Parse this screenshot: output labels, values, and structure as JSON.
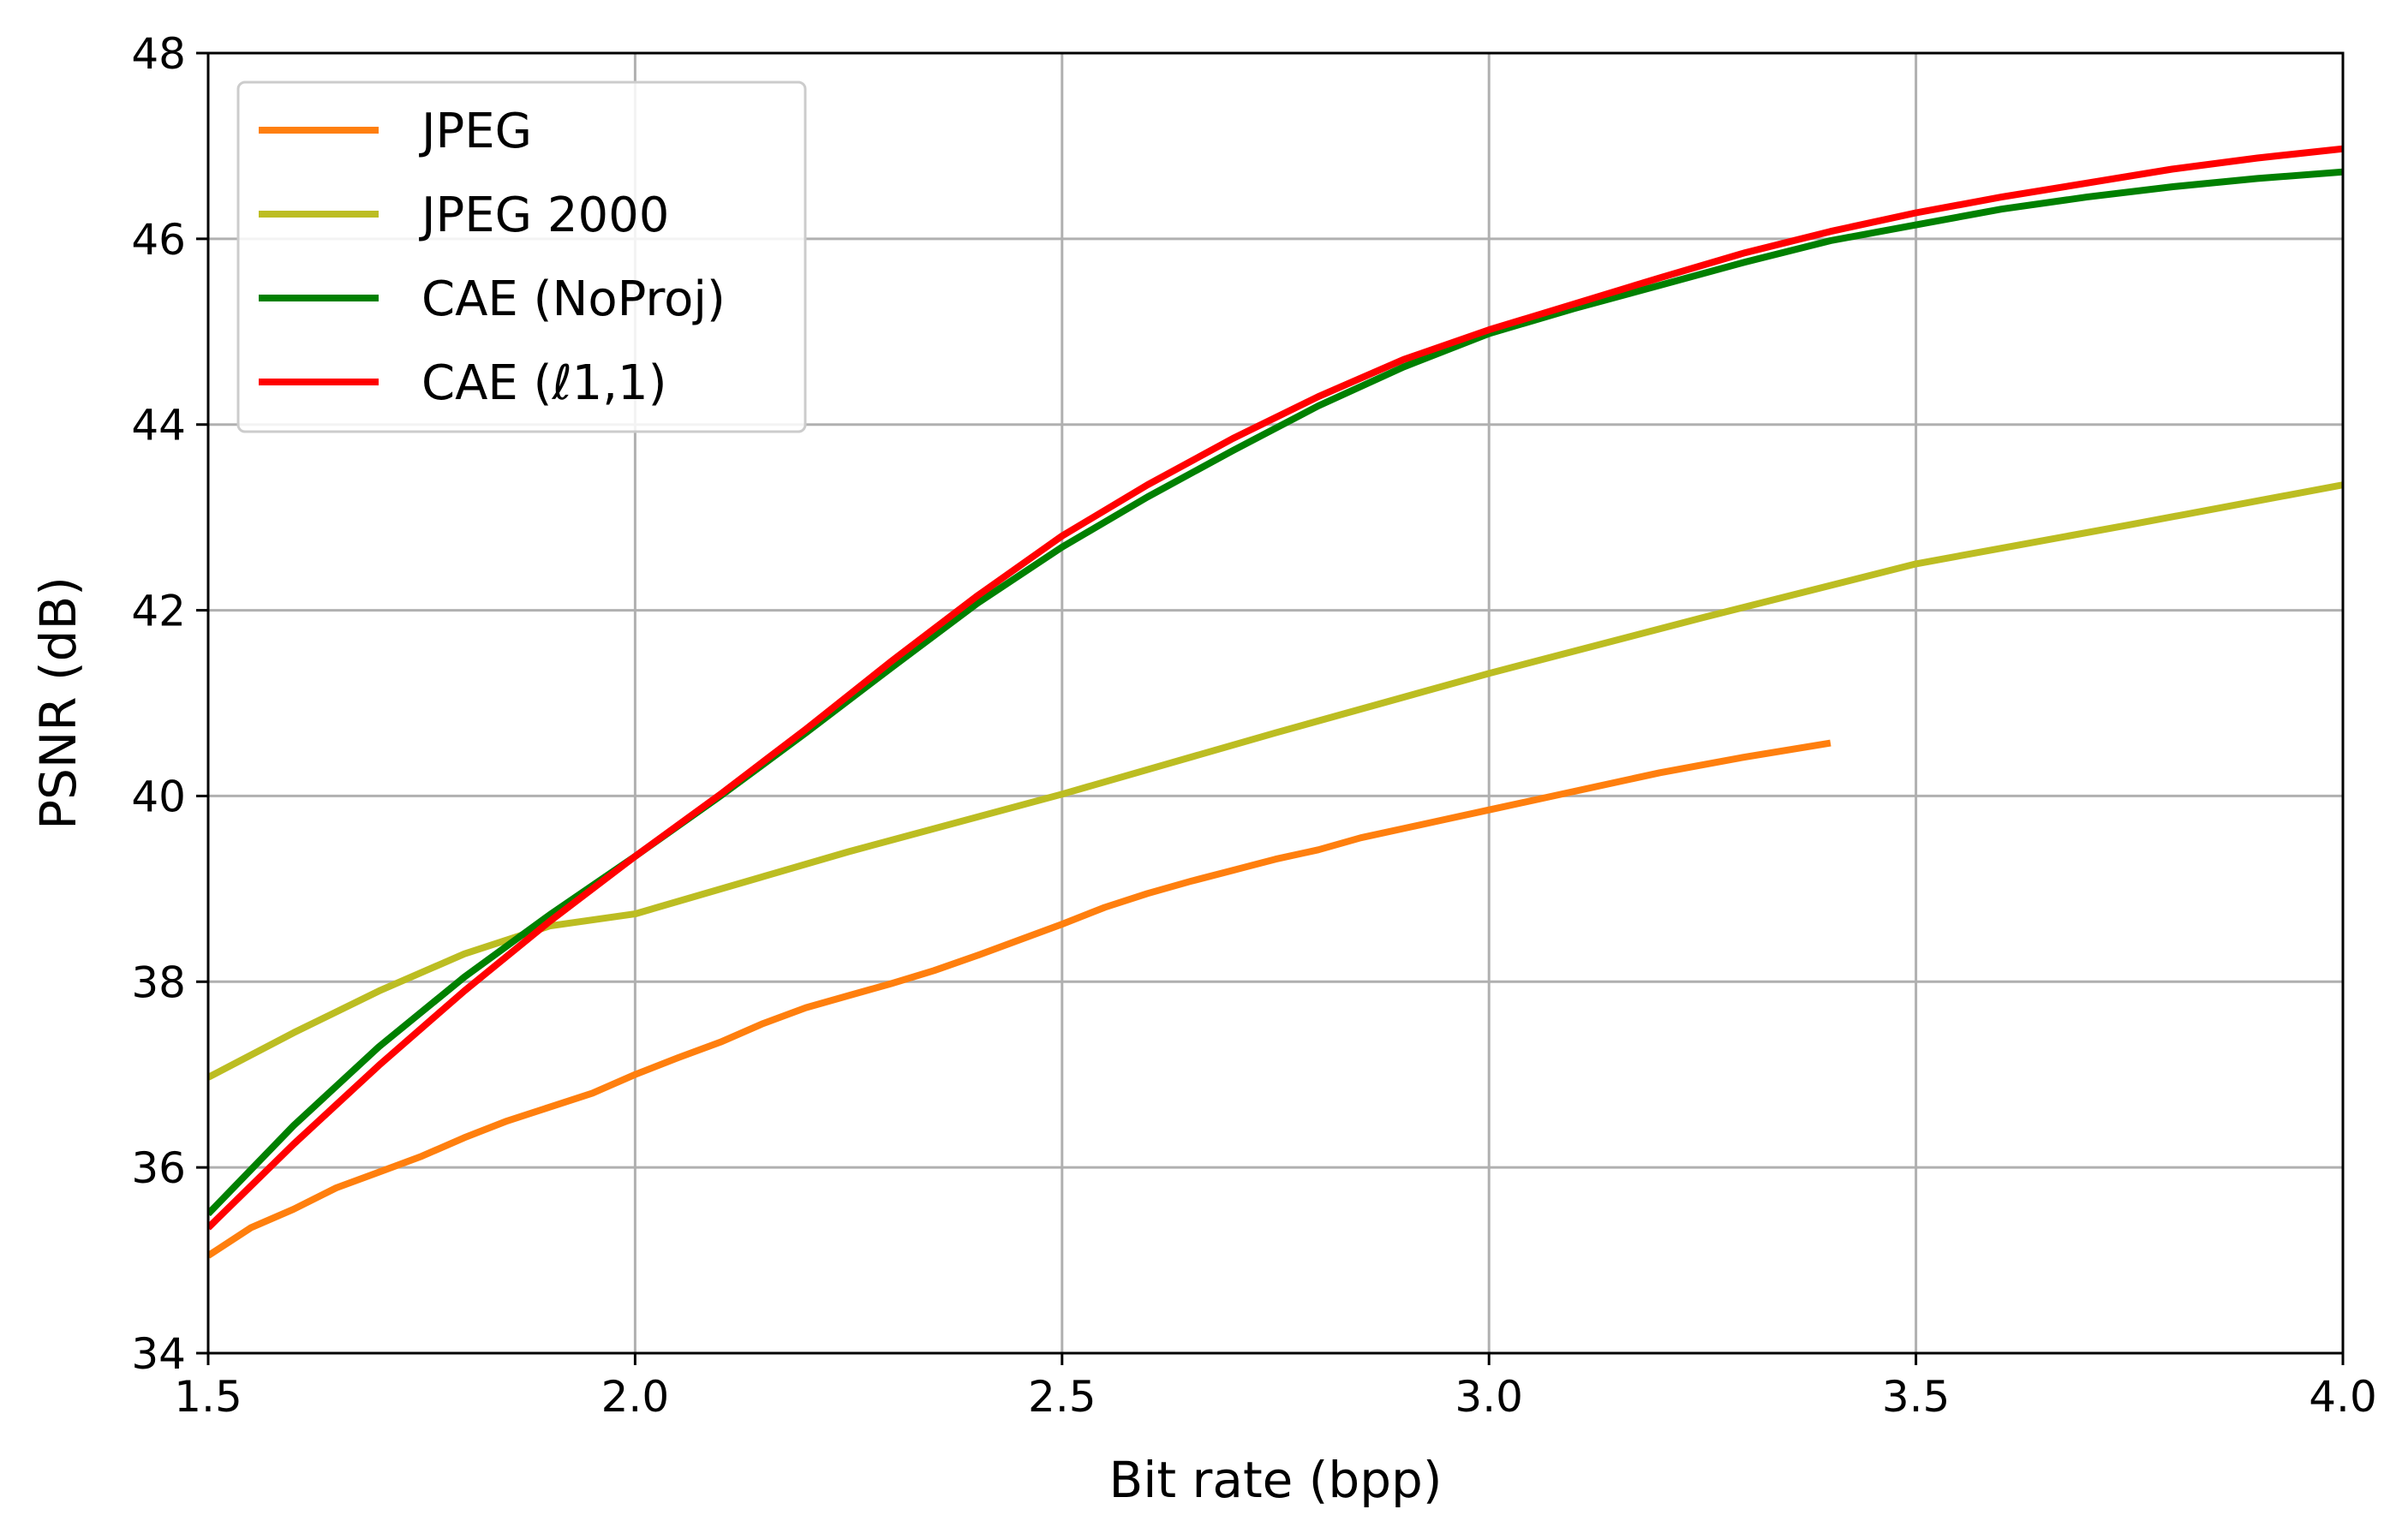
{
  "chart_data": {
    "type": "line",
    "title": "",
    "xlabel": "Bit rate (bpp)",
    "ylabel": "PSNR (dB)",
    "xlim": [
      1.5,
      4.0
    ],
    "ylim": [
      34,
      48
    ],
    "xticks": [
      1.5,
      2.0,
      2.5,
      3.0,
      3.5,
      4.0
    ],
    "xtick_labels": [
      "1.5",
      "2.0",
      "2.5",
      "3.0",
      "3.5",
      "4.0"
    ],
    "yticks": [
      34,
      36,
      38,
      40,
      42,
      44,
      46,
      48
    ],
    "ytick_labels": [
      "34",
      "36",
      "38",
      "40",
      "42",
      "44",
      "46",
      "48"
    ],
    "grid": true,
    "legend_position": "top-left",
    "series": [
      {
        "name": "JPEG",
        "color": "#ff7f0e",
        "x": [
          1.5,
          1.55,
          1.6,
          1.65,
          1.7,
          1.75,
          1.8,
          1.85,
          1.9,
          1.95,
          2.0,
          2.05,
          2.1,
          2.15,
          2.2,
          2.25,
          2.3,
          2.35,
          2.4,
          2.45,
          2.5,
          2.55,
          2.6,
          2.65,
          2.7,
          2.75,
          2.8,
          2.85,
          2.9,
          2.95,
          3.0,
          3.1,
          3.2,
          3.3,
          3.4
        ],
        "y": [
          35.05,
          35.35,
          35.55,
          35.78,
          35.95,
          36.12,
          36.32,
          36.5,
          36.65,
          36.8,
          37.0,
          37.18,
          37.35,
          37.55,
          37.72,
          37.85,
          37.98,
          38.12,
          38.28,
          38.45,
          38.62,
          38.8,
          38.95,
          39.08,
          39.2,
          39.32,
          39.42,
          39.55,
          39.65,
          39.75,
          39.85,
          40.05,
          40.25,
          40.42,
          40.57
        ]
      },
      {
        "name": "JPEG 2000",
        "color": "#bcbd22",
        "x": [
          1.5,
          1.6,
          1.7,
          1.8,
          1.9,
          2.0,
          2.25,
          2.5,
          2.75,
          3.0,
          3.25,
          3.5,
          3.75,
          4.0
        ],
        "y": [
          36.97,
          37.45,
          37.9,
          38.3,
          38.6,
          38.73,
          39.4,
          40.02,
          40.68,
          41.32,
          41.92,
          42.5,
          42.92,
          43.35
        ]
      },
      {
        "name": "CAE (NoProj)",
        "color": "#008000",
        "x": [
          1.5,
          1.6,
          1.7,
          1.8,
          1.9,
          2.0,
          2.1,
          2.2,
          2.3,
          2.4,
          2.5,
          2.6,
          2.7,
          2.8,
          2.9,
          3.0,
          3.1,
          3.2,
          3.3,
          3.4,
          3.5,
          3.6,
          3.7,
          3.8,
          3.9,
          4.0
        ],
        "y": [
          35.5,
          36.45,
          37.3,
          38.05,
          38.72,
          39.35,
          40.0,
          40.68,
          41.38,
          42.07,
          42.68,
          43.22,
          43.72,
          44.2,
          44.62,
          44.98,
          45.25,
          45.5,
          45.75,
          45.98,
          46.15,
          46.32,
          46.45,
          46.56,
          46.65,
          46.72
        ]
      },
      {
        "name": "CAE (ℓ1,1)",
        "color": "#ff0000",
        "x": [
          1.5,
          1.6,
          1.7,
          1.8,
          1.9,
          2.0,
          2.1,
          2.2,
          2.3,
          2.4,
          2.5,
          2.6,
          2.7,
          2.8,
          2.9,
          3.0,
          3.1,
          3.2,
          3.3,
          3.4,
          3.5,
          3.6,
          3.7,
          3.8,
          3.9,
          4.0
        ],
        "y": [
          35.35,
          36.25,
          37.1,
          37.9,
          38.65,
          39.35,
          40.02,
          40.72,
          41.45,
          42.15,
          42.8,
          43.35,
          43.85,
          44.3,
          44.7,
          45.02,
          45.3,
          45.58,
          45.85,
          46.08,
          46.28,
          46.45,
          46.6,
          46.75,
          46.87,
          46.97
        ]
      }
    ]
  }
}
